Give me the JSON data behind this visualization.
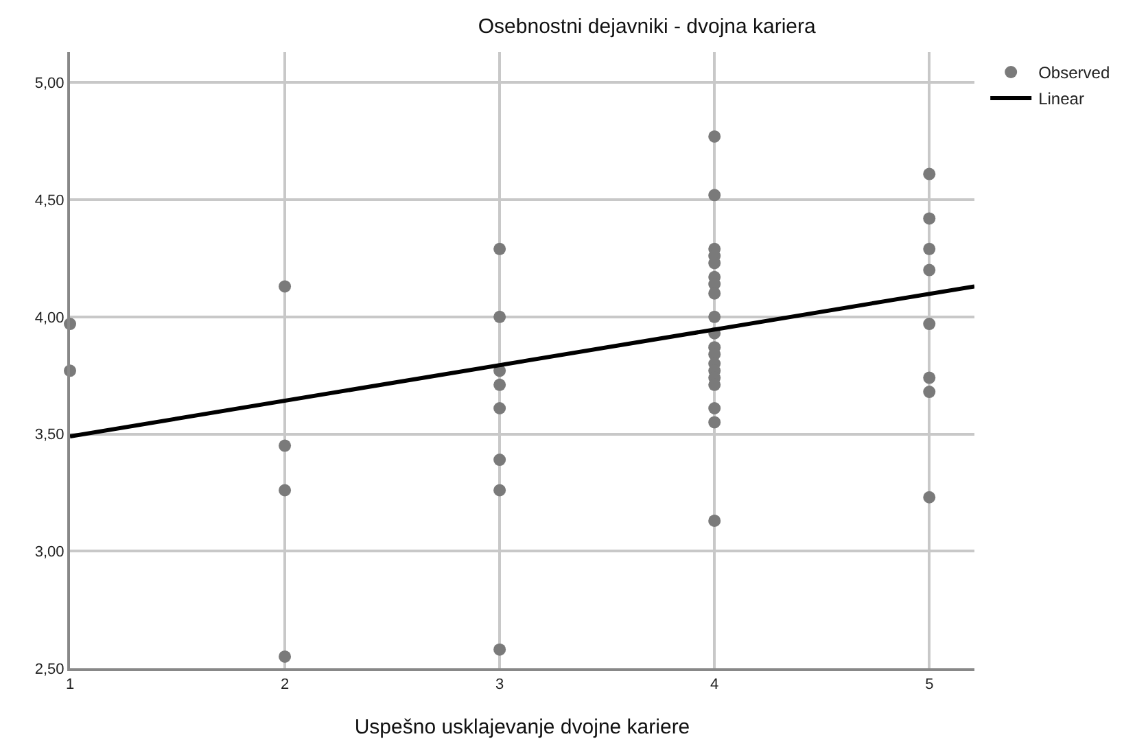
{
  "chart_data": {
    "type": "scatter",
    "title": "Osebnostni dejavniki - dvojna kariera",
    "xlabel": "Uspešno usklajevanje dvojne kariere",
    "xlim": [
      1,
      5.21
    ],
    "xticks": [
      1,
      2,
      3,
      4,
      5
    ],
    "ylim": [
      2.5,
      5.13
    ],
    "yticks": [
      {
        "value": 2.5,
        "label": "2,50"
      },
      {
        "value": 3,
        "label": "3,00"
      },
      {
        "value": 3.5,
        "label": "3,50"
      },
      {
        "value": 4,
        "label": "4,00"
      },
      {
        "value": 4.5,
        "label": "4,50"
      },
      {
        "value": 5,
        "label": "5,00"
      }
    ],
    "grid": true,
    "legend": "top right",
    "series": [
      {
        "name": "Observed",
        "color": "#7a7a7a",
        "marker": "circle",
        "x": [
          1,
          1,
          2,
          2,
          2,
          2,
          3,
          3,
          3,
          3,
          3,
          3,
          3,
          3,
          4,
          4,
          4,
          4,
          4,
          4,
          4,
          4,
          4,
          4,
          4,
          4,
          4,
          4,
          4,
          4,
          4,
          4,
          4,
          5,
          5,
          5,
          5,
          5,
          5,
          5,
          5
        ],
        "values": [
          3.97,
          3.77,
          4.13,
          3.45,
          3.26,
          2.55,
          4.29,
          4.0,
          3.77,
          3.71,
          3.61,
          3.39,
          3.26,
          2.58,
          4.77,
          4.52,
          4.29,
          4.26,
          4.23,
          4.17,
          4.14,
          4.1,
          4.0,
          3.93,
          3.87,
          3.84,
          3.8,
          3.77,
          3.74,
          3.71,
          3.61,
          3.55,
          3.13,
          4.61,
          4.42,
          4.29,
          4.2,
          3.97,
          3.74,
          3.68,
          3.23
        ]
      },
      {
        "name": "Linear",
        "type": "line",
        "color": "#000000",
        "x": [
          1,
          5.21
        ],
        "values": [
          3.49,
          4.13
        ],
        "line_style": "solid",
        "marker": "none"
      }
    ]
  }
}
